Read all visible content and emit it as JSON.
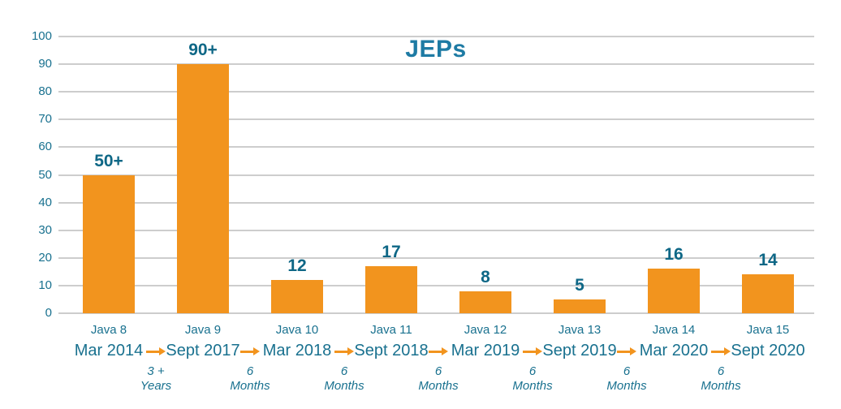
{
  "colors": {
    "bar": "#F2941E",
    "teal": "#19718F",
    "value_label": "#0E6786",
    "title": "#1E7BA4",
    "gridline": "#CDCDCD",
    "arrow": "#F2941E",
    "background": "#FFFFFF"
  },
  "chart_data": {
    "type": "bar",
    "title": "JEPs",
    "categories": [
      "Java 8",
      "Java 9",
      "Java 10",
      "Java 11",
      "Java 12",
      "Java 13",
      "Java 14",
      "Java 15"
    ],
    "release_dates": [
      "Mar 2014",
      "Sept 2017",
      "Mar 2018",
      "Sept 2018",
      "Mar 2019",
      "Sept 2019",
      "Mar 2020",
      "Sept 2020"
    ],
    "values": [
      50,
      90,
      12,
      17,
      8,
      5,
      16,
      14
    ],
    "bar_labels": [
      "50+",
      "90+",
      "12",
      "17",
      "8",
      "5",
      "16",
      "14"
    ],
    "intervals": [
      {
        "value": "3 +",
        "unit": "Years"
      },
      {
        "value": "6",
        "unit": "Months"
      },
      {
        "value": "6",
        "unit": "Months"
      },
      {
        "value": "6",
        "unit": "Months"
      },
      {
        "value": "6",
        "unit": "Months"
      },
      {
        "value": "6",
        "unit": "Months"
      },
      {
        "value": "6",
        "unit": "Months"
      }
    ],
    "xlabel": "",
    "ylabel": "",
    "ylim": [
      0,
      100
    ],
    "y_ticks": [
      0,
      10,
      20,
      30,
      40,
      50,
      60,
      70,
      80,
      90,
      100
    ],
    "grid": true,
    "legend": false,
    "bar_color": "#F2941E"
  }
}
